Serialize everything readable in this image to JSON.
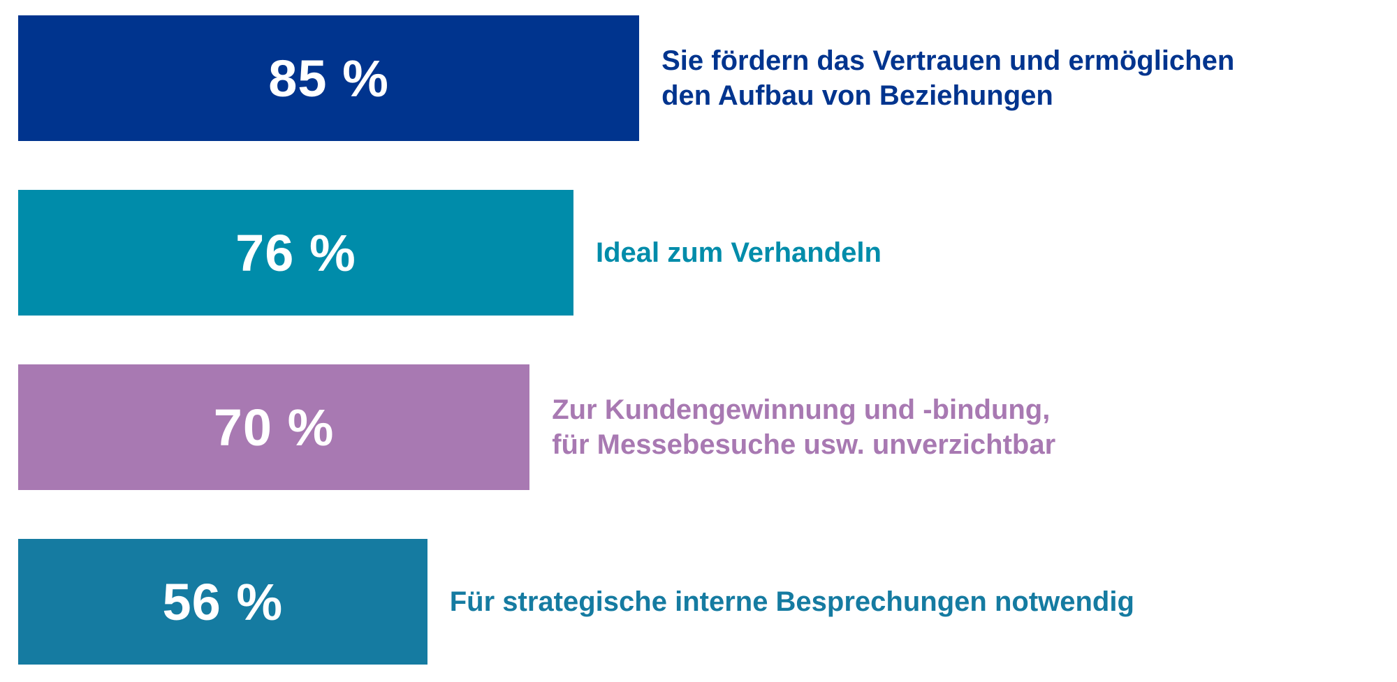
{
  "chart_data": {
    "type": "bar",
    "orientation": "horizontal",
    "xlim": [
      0,
      100
    ],
    "grid": false,
    "title": "",
    "xlabel": "",
    "ylabel": "",
    "bars": [
      {
        "value": 85,
        "value_label": "85 %",
        "label_lines": [
          "Sie fördern das Vertrauen und ermöglichen",
          "den Aufbau von Beziehungen"
        ],
        "color": "#00348E"
      },
      {
        "value": 76,
        "value_label": "76 %",
        "label_lines": [
          "Ideal zum Verhandeln"
        ],
        "color": "#008CAA"
      },
      {
        "value": 70,
        "value_label": "70 %",
        "label_lines": [
          "Zur Kundengewinnung und -bindung,",
          "für Messebesuche usw. unverzichtbar"
        ],
        "color": "#A879B2"
      },
      {
        "value": 56,
        "value_label": "56 %",
        "label_lines": [
          "Für strategische interne Besprechungen notwendig"
        ],
        "color": "#157BA1"
      }
    ]
  }
}
